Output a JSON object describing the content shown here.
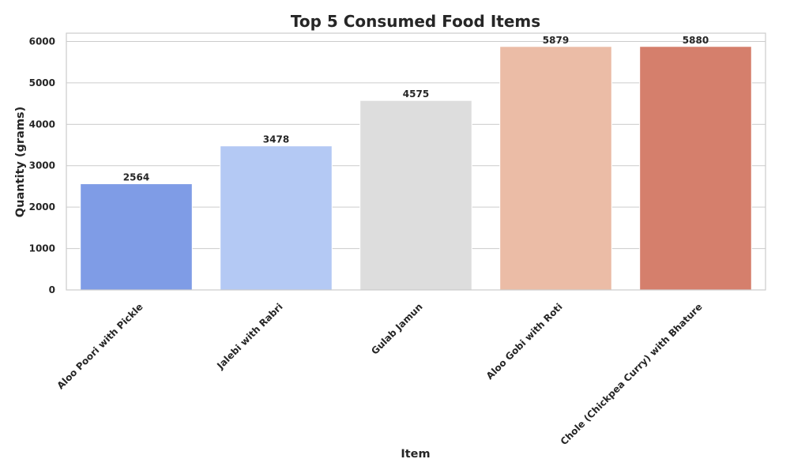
{
  "chart_data": {
    "type": "bar",
    "title": "Top 5 Consumed Food Items",
    "xlabel": "Item",
    "ylabel": "Quantity (grams)",
    "categories": [
      "Aloo Poori with Pickle",
      "Jalebi with Rabri",
      "Gulab Jamun",
      "Aloo Gobi with Roti",
      "Chole (Chickpea Curry) with Bhature"
    ],
    "values": [
      2564,
      3478,
      4575,
      5879,
      5880
    ],
    "data_labels": [
      "2564",
      "3478",
      "4575",
      "5879",
      "5880"
    ],
    "colors": [
      "#7f9ce6",
      "#b4c9f4",
      "#dddddd",
      "#ebbca6",
      "#d57f6c"
    ],
    "ylim": [
      0,
      6200
    ],
    "yticks": [
      0,
      1000,
      2000,
      3000,
      4000,
      5000,
      6000
    ],
    "ytick_labels": [
      "0",
      "1000",
      "2000",
      "3000",
      "4000",
      "5000",
      "6000"
    ],
    "xtick_rotation": "45 degrees",
    "grid": "horizontal",
    "legend": "none"
  }
}
